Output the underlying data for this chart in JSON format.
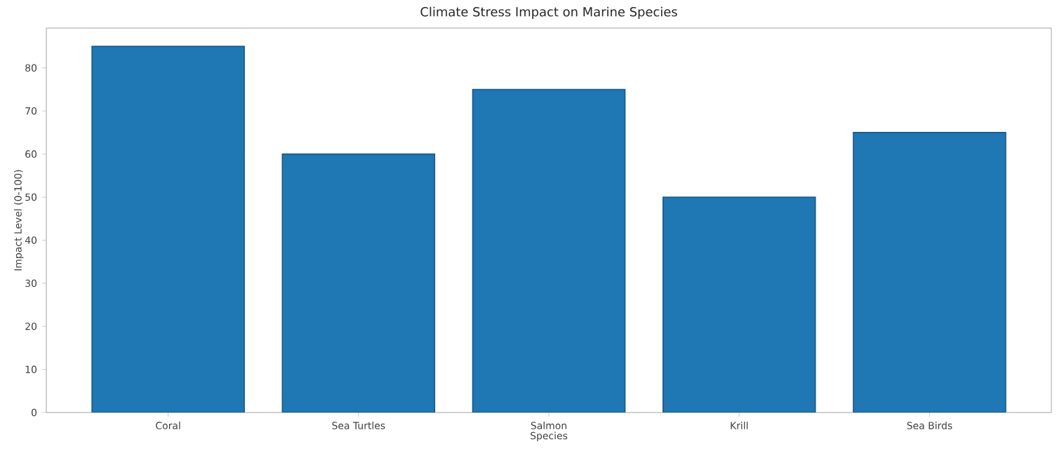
{
  "chart_data": {
    "type": "bar",
    "title": "Climate Stress Impact on Marine Species",
    "xlabel": "Species",
    "ylabel": "Impact Level (0-100)",
    "categories": [
      "Coral",
      "Sea Turtles",
      "Salmon",
      "Krill",
      "Sea Birds"
    ],
    "values": [
      85,
      60,
      75,
      50,
      65
    ],
    "color": "#1f77b4",
    "ylim": [
      0,
      89.25
    ],
    "yticks": [
      0,
      10,
      20,
      30,
      40,
      50,
      60,
      70,
      80
    ]
  }
}
